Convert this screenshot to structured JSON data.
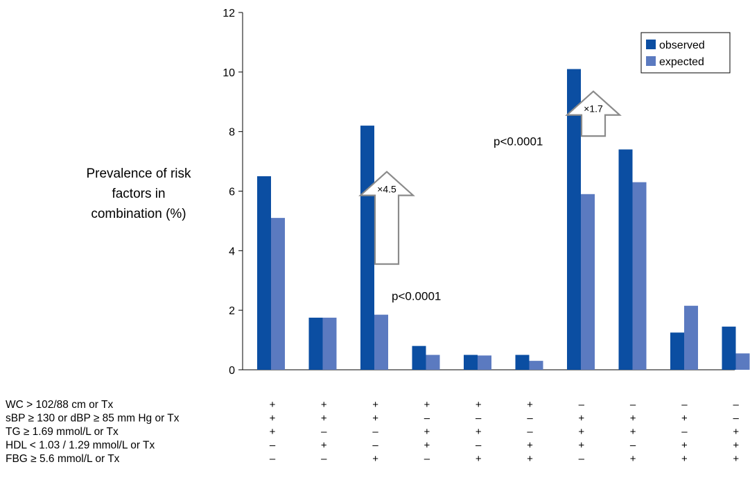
{
  "chart_data": {
    "type": "bar",
    "ylabel_lines": [
      "Prevalence of risk",
      "factors in",
      "combination (%)"
    ],
    "ylim": [
      0,
      12
    ],
    "yticks": [
      0,
      2,
      4,
      6,
      8,
      10,
      12
    ],
    "grid": false,
    "legend_position": "top-right",
    "series": [
      {
        "name": "observed",
        "color": "#0b4ea2",
        "values": [
          6.5,
          1.75,
          8.2,
          0.8,
          0.5,
          0.5,
          10.1,
          7.4,
          1.25,
          1.45
        ]
      },
      {
        "name": "expected",
        "color": "#5b7ac0",
        "values": [
          5.1,
          1.75,
          1.85,
          0.5,
          0.48,
          0.3,
          5.9,
          6.3,
          2.15,
          0.55
        ]
      }
    ],
    "row_labels": [
      "WC > 102/88 cm or Tx",
      "sBP ≥ 130 or dBP ≥ 85 mm Hg or Tx",
      "TG ≥ 1.69 mmol/L or Tx",
      "HDL < 1.03 / 1.29 mmol/L or Tx",
      "FBG ≥ 5.6 mmol/L or Tx"
    ],
    "combinations": [
      [
        "+",
        "+",
        "+",
        "–",
        "–"
      ],
      [
        "+",
        "+",
        "–",
        "+",
        "–"
      ],
      [
        "+",
        "+",
        "–",
        "–",
        "+"
      ],
      [
        "+",
        "–",
        "+",
        "+",
        "–"
      ],
      [
        "+",
        "–",
        "+",
        "–",
        "+"
      ],
      [
        "+",
        "–",
        "–",
        "+",
        "+"
      ],
      [
        "–",
        "+",
        "+",
        "+",
        "–"
      ],
      [
        "–",
        "+",
        "+",
        "–",
        "+"
      ],
      [
        "–",
        "+",
        "–",
        "+",
        "+"
      ],
      [
        "–",
        "–",
        "+",
        "+",
        "+"
      ]
    ],
    "annotations": [
      {
        "text": "p<0.0001",
        "group": 2,
        "y": 2.5
      },
      {
        "text": "p<0.0001",
        "group": 6,
        "y": 7.7
      }
    ],
    "arrows": [
      {
        "label": "×4.5",
        "group": 2,
        "from": 3.55,
        "to": 6.65
      },
      {
        "label": "×1.7",
        "group": 6,
        "from": 7.85,
        "to": 9.35
      }
    ]
  }
}
